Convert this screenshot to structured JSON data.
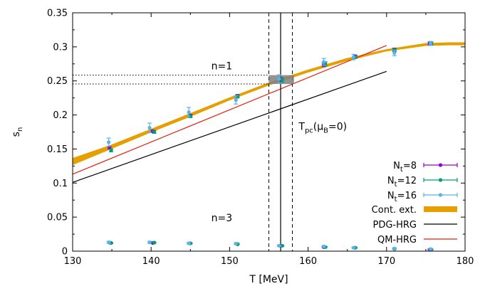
{
  "chart_data": {
    "type": "scatter",
    "xlabel": "T [MeV]",
    "ylabel": "s",
    "ylabel_sub": "n",
    "xlim": [
      130,
      180
    ],
    "ylim": [
      0,
      0.35
    ],
    "x_ticks": [
      130,
      140,
      150,
      160,
      170,
      180
    ],
    "x_tick_labels": [
      "130",
      "140",
      "150",
      "160",
      "170",
      "180"
    ],
    "y_ticks": [
      0,
      0.05,
      0.1,
      0.15,
      0.2,
      0.25,
      0.3,
      0.35
    ],
    "y_tick_labels": [
      "0",
      "0.05",
      "0.1",
      "0.15",
      "0.2",
      "0.25",
      "0.3",
      "0.35"
    ],
    "grid": false,
    "legend_position": "bottom-right",
    "annotations": [
      {
        "text": "n=1",
        "x": 149,
        "y": 0.267
      },
      {
        "text": "n=3",
        "x": 149,
        "y": 0.044
      }
    ],
    "tpc": {
      "label_main": "T",
      "label_sub": "pc",
      "label_paren": "(μ",
      "label_sub2": "B",
      "label_tail": "=0)",
      "center": 156.5,
      "lower": 155.0,
      "upper": 158.0,
      "label_x": 158.8,
      "label_y": 0.178
    },
    "s_band": {
      "y_low": 0.2455,
      "y_high": 0.2585,
      "x_from": 130,
      "box_x": [
        155.0,
        158.2
      ]
    },
    "colors": {
      "nt8": "#9400d3",
      "nt12": "#009e73",
      "nt16": "#56b4e9",
      "cont": "#e69f00",
      "pdg": "#000000",
      "qm": "#e51e10",
      "band_box": "#808080"
    },
    "series": [
      {
        "name": "N",
        "name_sub": "t",
        "name_tail": "=8",
        "kind": "points",
        "color_key": "nt8",
        "n1": [
          {
            "x": 134.7,
            "y": 0.152,
            "err": 0.002
          },
          {
            "x": 140.2,
            "y": 0.176,
            "err": 0.002
          },
          {
            "x": 145.0,
            "y": 0.199,
            "err": 0.002
          },
          {
            "x": 151.0,
            "y": 0.228,
            "err": 0.002
          },
          {
            "x": 156.5,
            "y": 0.252,
            "err": 0.003
          },
          {
            "x": 162.0,
            "y": 0.274,
            "err": 0.003
          },
          {
            "x": 166.0,
            "y": 0.286,
            "err": 0.002
          },
          {
            "x": 171.0,
            "y": 0.296,
            "err": 0.002
          },
          {
            "x": 175.5,
            "y": 0.305,
            "err": 0.002
          }
        ],
        "n3": [
          {
            "x": 134.7,
            "y": 0.0125,
            "err": 0.0008
          },
          {
            "x": 140.2,
            "y": 0.012,
            "err": 0.0008
          },
          {
            "x": 145.0,
            "y": 0.0115,
            "err": 0.0008
          },
          {
            "x": 151.0,
            "y": 0.0105,
            "err": 0.0008
          },
          {
            "x": 156.5,
            "y": 0.008,
            "err": 0.0008
          },
          {
            "x": 162.0,
            "y": 0.006,
            "err": 0.0008
          },
          {
            "x": 166.0,
            "y": 0.005,
            "err": 0.0008
          },
          {
            "x": 171.0,
            "y": 0.0035,
            "err": 0.0008
          },
          {
            "x": 175.5,
            "y": 0.0025,
            "err": 0.0008
          }
        ]
      },
      {
        "name": "N",
        "name_sub": "t",
        "name_tail": "=12",
        "kind": "points",
        "color_key": "nt12",
        "n1": [
          {
            "x": 134.9,
            "y": 0.148,
            "err": 0.002
          },
          {
            "x": 140.4,
            "y": 0.175,
            "err": 0.002
          },
          {
            "x": 145.0,
            "y": 0.198,
            "err": 0.002
          },
          {
            "x": 151.0,
            "y": 0.227,
            "err": 0.002
          },
          {
            "x": 156.7,
            "y": 0.251,
            "err": 0.003
          },
          {
            "x": 162.2,
            "y": 0.275,
            "err": 0.003
          },
          {
            "x": 166.0,
            "y": 0.285,
            "err": 0.002
          },
          {
            "x": 171.0,
            "y": 0.295,
            "err": 0.002
          },
          {
            "x": 175.7,
            "y": 0.305,
            "err": 0.002
          }
        ],
        "n3": [
          {
            "x": 134.9,
            "y": 0.012,
            "err": 0.0008
          },
          {
            "x": 140.4,
            "y": 0.0125,
            "err": 0.0008
          },
          {
            "x": 145.0,
            "y": 0.0115,
            "err": 0.0008
          },
          {
            "x": 151.0,
            "y": 0.01,
            "err": 0.0008
          },
          {
            "x": 156.7,
            "y": 0.008,
            "err": 0.0008
          },
          {
            "x": 162.2,
            "y": 0.006,
            "err": 0.0008
          },
          {
            "x": 166.0,
            "y": 0.005,
            "err": 0.0008
          },
          {
            "x": 171.0,
            "y": 0.0035,
            "err": 0.0008
          },
          {
            "x": 175.7,
            "y": 0.0025,
            "err": 0.0008
          }
        ]
      },
      {
        "name": "N",
        "name_sub": "t",
        "name_tail": "=16",
        "kind": "points",
        "color_key": "nt16",
        "n1": [
          {
            "x": 134.6,
            "y": 0.16,
            "err": 0.006
          },
          {
            "x": 139.8,
            "y": 0.181,
            "err": 0.007
          },
          {
            "x": 144.8,
            "y": 0.204,
            "err": 0.007
          },
          {
            "x": 150.8,
            "y": 0.222,
            "err": 0.006
          },
          {
            "x": 156.3,
            "y": 0.253,
            "err": 0.006
          },
          {
            "x": 162.0,
            "y": 0.278,
            "err": 0.005
          },
          {
            "x": 165.8,
            "y": 0.285,
            "err": 0.004
          },
          {
            "x": 171.0,
            "y": 0.291,
            "err": 0.004
          },
          {
            "x": 175.6,
            "y": 0.305,
            "err": 0.003
          }
        ],
        "n3": [
          {
            "x": 134.6,
            "y": 0.013,
            "err": 0.0015
          },
          {
            "x": 139.8,
            "y": 0.013,
            "err": 0.0015
          },
          {
            "x": 144.8,
            "y": 0.0115,
            "err": 0.0012
          },
          {
            "x": 150.8,
            "y": 0.011,
            "err": 0.0012
          },
          {
            "x": 156.3,
            "y": 0.008,
            "err": 0.001
          },
          {
            "x": 162.0,
            "y": 0.007,
            "err": 0.001
          },
          {
            "x": 165.8,
            "y": 0.005,
            "err": 0.001
          },
          {
            "x": 171.0,
            "y": 0.004,
            "err": 0.001
          },
          {
            "x": 175.6,
            "y": 0.003,
            "err": 0.001
          }
        ]
      },
      {
        "name": "Cont. ext.",
        "kind": "band",
        "color_key": "cont",
        "x": [
          130,
          135,
          140,
          145,
          150,
          155,
          160,
          165,
          170,
          175,
          178,
          180
        ],
        "lower": [
          0.127,
          0.151,
          0.175,
          0.198,
          0.222,
          0.244,
          0.263,
          0.28,
          0.294,
          0.302,
          0.303,
          0.303
        ],
        "upper": [
          0.136,
          0.156,
          0.179,
          0.202,
          0.225,
          0.247,
          0.266,
          0.283,
          0.296,
          0.305,
          0.306,
          0.306
        ]
      },
      {
        "name": "PDG-HRG",
        "kind": "line",
        "color_key": "pdg",
        "x": [
          130,
          170
        ],
        "y": [
          0.101,
          0.264
        ]
      },
      {
        "name": "QM-HRG",
        "kind": "line",
        "color_key": "qm",
        "x": [
          130,
          170
        ],
        "y": [
          0.113,
          0.302
        ]
      }
    ]
  }
}
